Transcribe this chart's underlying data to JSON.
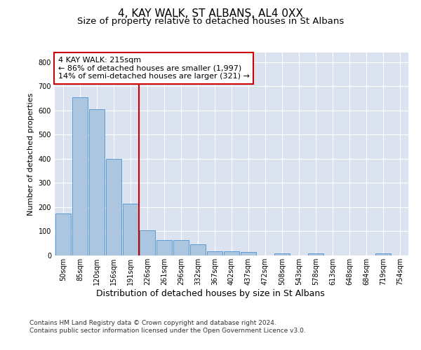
{
  "title": "4, KAY WALK, ST ALBANS, AL4 0XX",
  "subtitle": "Size of property relative to detached houses in St Albans",
  "xlabel": "Distribution of detached houses by size in St Albans",
  "ylabel": "Number of detached properties",
  "bar_values": [
    175,
    655,
    605,
    400,
    215,
    105,
    63,
    63,
    45,
    18,
    18,
    15,
    0,
    8,
    0,
    8,
    0,
    0,
    0,
    8,
    0
  ],
  "categories": [
    "50sqm",
    "85sqm",
    "120sqm",
    "156sqm",
    "191sqm",
    "226sqm",
    "261sqm",
    "296sqm",
    "332sqm",
    "367sqm",
    "402sqm",
    "437sqm",
    "472sqm",
    "508sqm",
    "543sqm",
    "578sqm",
    "613sqm",
    "648sqm",
    "684sqm",
    "719sqm",
    "754sqm"
  ],
  "bar_color": "#adc6e0",
  "bar_edge_color": "#5b9bd5",
  "background_color": "#dce3f0",
  "grid_color": "#ffffff",
  "vline_color": "#cc0000",
  "annotation_text": "4 KAY WALK: 215sqm\n← 86% of detached houses are smaller (1,997)\n14% of semi-detached houses are larger (321) →",
  "annotation_box_color": "#ffffff",
  "annotation_box_edge": "#cc0000",
  "ylim": [
    0,
    840
  ],
  "yticks": [
    0,
    100,
    200,
    300,
    400,
    500,
    600,
    700,
    800
  ],
  "footer": "Contains HM Land Registry data © Crown copyright and database right 2024.\nContains public sector information licensed under the Open Government Licence v3.0.",
  "title_fontsize": 11,
  "subtitle_fontsize": 9.5,
  "ylabel_fontsize": 8,
  "xlabel_fontsize": 9,
  "tick_fontsize": 7,
  "annotation_fontsize": 8,
  "footer_fontsize": 6.5
}
